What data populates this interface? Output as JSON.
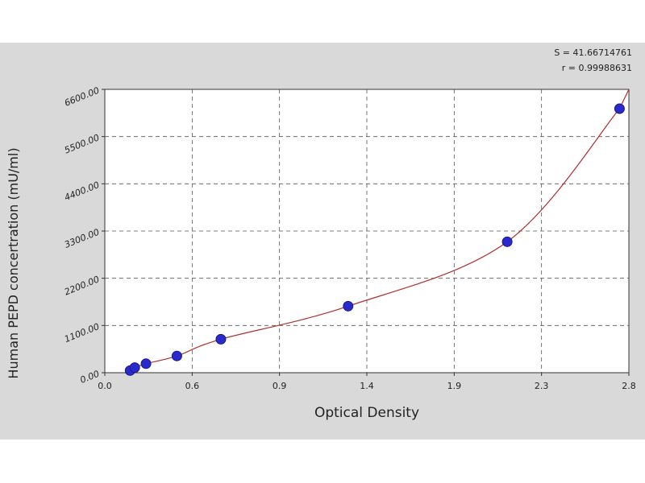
{
  "stats": {
    "s_line": "S = 41.66714761",
    "r_line": "r = 0.99988631"
  },
  "chart_data": {
    "type": "scatter",
    "title": "",
    "xlabel": "Optical Density",
    "ylabel": "Human PEPD concertration (mU/ml)",
    "xlim": [
      0.0,
      2.8
    ],
    "ylim": [
      0.0,
      6600.0
    ],
    "x_ticks": [
      "0.0",
      "0.6",
      "0.9",
      "1.4",
      "1.9",
      "2.3",
      "2.8"
    ],
    "y_ticks": [
      "0.00",
      "1100.00",
      "2200.00",
      "3300.00",
      "4400.00",
      "5500.00",
      "6600.00"
    ],
    "grid": true,
    "series": [
      {
        "x": [
          0.135,
          0.16,
          0.22,
          0.385,
          0.62,
          1.3,
          2.15,
          2.75
        ],
        "y": [
          50,
          120,
          210,
          390,
          780,
          1550,
          3050,
          6150
        ]
      }
    ],
    "colors": {
      "points": "#2a2acc",
      "curve": "#b03030",
      "grid": "#555555",
      "panel": "#d9d9d9"
    }
  }
}
